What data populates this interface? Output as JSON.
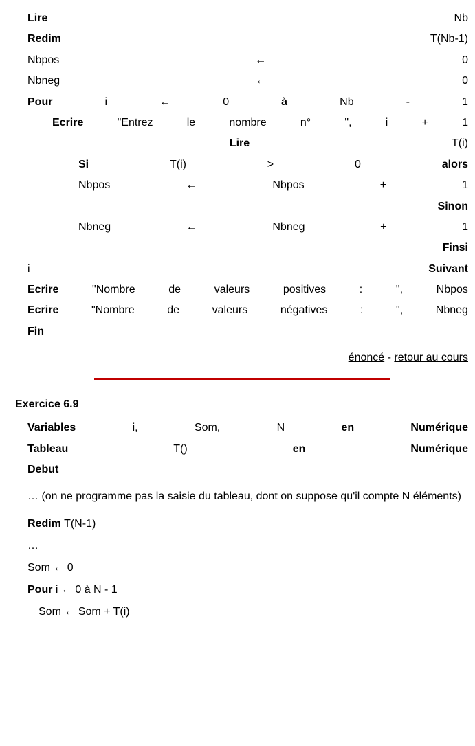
{
  "colors": {
    "text": "#000000",
    "background": "#ffffff",
    "hr": "#c00000"
  },
  "code": {
    "l1": {
      "a": "Lire",
      "b": "Nb"
    },
    "l2": {
      "a": "Redim",
      "b": "T(Nb-1)"
    },
    "l3": {
      "a": "Nbpos",
      "b": "←",
      "c": "0"
    },
    "l4": {
      "a": "Nbneg",
      "b": "←",
      "c": "0"
    },
    "l5": {
      "a": "Pour",
      "b": "i",
      "c": "←",
      "d": "0",
      "e": "à",
      "f": "Nb",
      "g": "-",
      "h": "1"
    },
    "l6": {
      "a": "Ecrire",
      "b": "\"Entrez",
      "c": "le",
      "d": "nombre",
      "e": "n°",
      "f": "\",",
      "g": "i",
      "h": "+",
      "i": "1"
    },
    "l7": {
      "a": "Lire",
      "b": "T(i)"
    },
    "l8": {
      "a": "Si",
      "b": "T(i)",
      "c": ">",
      "d": "0",
      "e": "alors"
    },
    "l9": {
      "a": "Nbpos",
      "b": "←",
      "c": "Nbpos",
      "d": "+",
      "e": "1"
    },
    "l10": {
      "a": "Sinon"
    },
    "l11": {
      "a": "Nbneg",
      "b": "←",
      "c": "Nbneg",
      "d": "+",
      "e": "1"
    },
    "l12": {
      "a": "Finsi"
    },
    "l13": {
      "a": "i",
      "b": "Suivant"
    },
    "l14": {
      "a": "Ecrire",
      "b": "\"Nombre",
      "c": "de",
      "d": "valeurs",
      "e": "positives",
      "f": ":",
      "g": "\",",
      "h": "Nbpos"
    },
    "l15": {
      "a": "Ecrire",
      "b": "\"Nombre",
      "c": "de",
      "d": "valeurs",
      "e": "négatives",
      "f": ":",
      "g": "\",",
      "h": "Nbneg"
    },
    "l16": {
      "a": "Fin"
    }
  },
  "links": {
    "enonce": "énoncé",
    "sep": " - ",
    "retour": "retour au cours"
  },
  "ex9": {
    "title": "Exercice 6.9",
    "l1": {
      "a": "Variables",
      "b": "i,",
      "c": "Som,",
      "d": "N",
      "e": "en",
      "f": "Numérique"
    },
    "l2": {
      "a": "Tableau",
      "b": "T()",
      "c": "en",
      "d": "Numérique"
    },
    "l3": "Debut",
    "para": "… (on ne programme pas la saisie du tableau, dont on suppose qu'il compte N éléments)",
    "l4": {
      "a": "Redim",
      "b": " T(N-1)"
    },
    "l5": "…",
    "l6": "Som ← 0",
    "l7": {
      "a": "Pour",
      "b": " i ← 0 à N - 1"
    },
    "l8": "Som ← Som + T(i)"
  }
}
